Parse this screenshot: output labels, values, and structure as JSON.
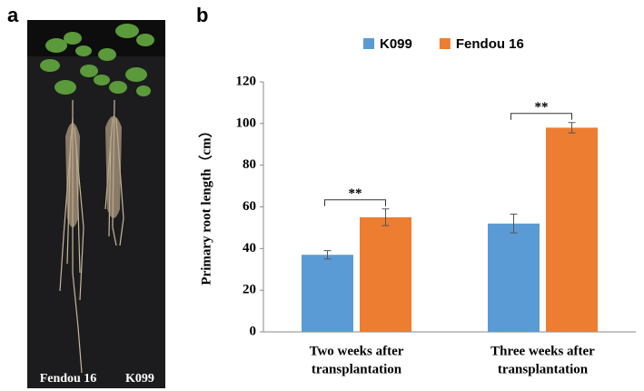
{
  "panels": {
    "photo": "a",
    "chart": "b"
  },
  "photo_labels": [
    "Fendou 16",
    "K099"
  ],
  "chart_data": {
    "type": "bar",
    "y_label": "Primary root length（cm）",
    "categories": [
      [
        "Two weeks after",
        "transplantation"
      ],
      [
        "Three weeks after",
        "transplantation"
      ]
    ],
    "series": [
      {
        "name": "K099",
        "color": "#5b9bd5",
        "values": [
          37,
          52
        ],
        "errors": [
          2,
          4.5
        ]
      },
      {
        "name": "Fendou 16",
        "color": "#ed7d31",
        "values": [
          55,
          98
        ],
        "errors": [
          4,
          2.5
        ]
      }
    ],
    "significance": [
      "**",
      "**"
    ],
    "ylim": [
      0,
      120
    ],
    "yticks": [
      0,
      20,
      40,
      60,
      80,
      100,
      120
    ],
    "legend": "top"
  }
}
